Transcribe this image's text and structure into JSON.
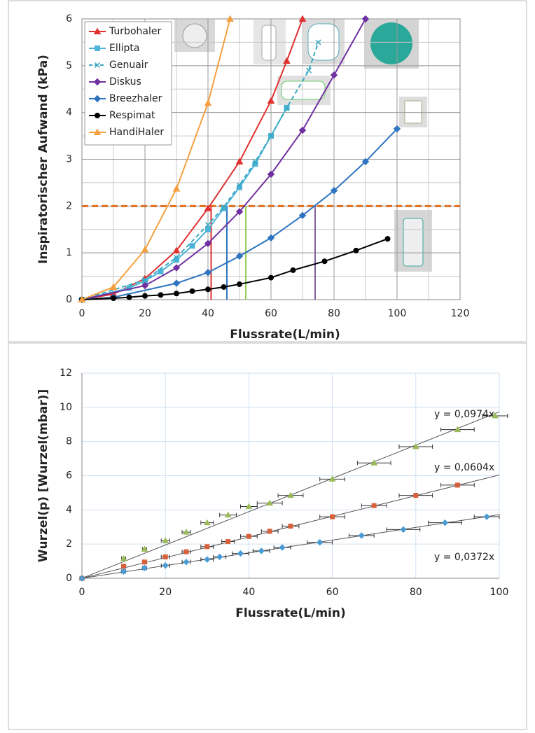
{
  "chart_data": [
    {
      "type": "line",
      "xlabel": "Flussrate(L/min)",
      "ylabel": "Inspiratorischer Aufwand (kPa)",
      "xlim": [
        0,
        120
      ],
      "ylim": [
        0,
        6
      ],
      "xticks": [
        0,
        20,
        40,
        60,
        80,
        100,
        120
      ],
      "yticks": [
        0,
        1,
        2,
        3,
        4,
        5,
        6
      ],
      "grid": true,
      "grid_step": [
        10,
        0.5
      ],
      "legend": "top-left",
      "hline": {
        "y": 2,
        "color": "#e07020"
      },
      "vlines": [
        {
          "x": 41,
          "color": "#e03030"
        },
        {
          "x": 46,
          "color": "#2e74c0"
        },
        {
          "x": 52,
          "color": "#92d050"
        },
        {
          "x": 74,
          "color": "#8060a0"
        }
      ],
      "series": [
        {
          "name": "Turbohaler",
          "color": "#e03030",
          "marker": "triangle",
          "x": [
            0,
            10,
            20,
            30,
            40,
            50,
            60,
            65,
            70
          ],
          "values": [
            0,
            0.12,
            0.45,
            1.05,
            1.95,
            2.95,
            4.25,
            5.1,
            6
          ]
        },
        {
          "name": "Ellipta",
          "color": "#4bb4d8",
          "marker": "square",
          "x": [
            0,
            15,
            20,
            25,
            30,
            35,
            40,
            45,
            50,
            55,
            60,
            65
          ],
          "values": [
            0,
            0.25,
            0.4,
            0.6,
            0.85,
            1.15,
            1.5,
            1.95,
            2.4,
            2.9,
            3.5,
            4.1
          ]
        },
        {
          "name": "Genuair",
          "color": "#3aa8c0",
          "marker": "star",
          "dashed": true,
          "x": [
            0,
            20,
            30,
            40,
            45,
            50,
            55,
            60,
            65,
            72,
            75
          ],
          "values": [
            0,
            0.42,
            0.9,
            1.6,
            1.98,
            2.45,
            2.95,
            3.5,
            4.1,
            4.9,
            5.5
          ]
        },
        {
          "name": "Diskus",
          "color": "#7030a0",
          "marker": "diamond",
          "x": [
            0,
            20,
            30,
            40,
            50,
            60,
            70,
            80,
            90
          ],
          "values": [
            0,
            0.3,
            0.68,
            1.2,
            1.88,
            2.68,
            3.62,
            4.8,
            6
          ]
        },
        {
          "name": "Breezhaler",
          "color": "#2e74c0",
          "marker": "diamond",
          "x": [
            0,
            10,
            30,
            40,
            50,
            60,
            70,
            80,
            90,
            100
          ],
          "values": [
            0,
            0.05,
            0.35,
            0.58,
            0.93,
            1.32,
            1.8,
            2.33,
            2.95,
            3.65
          ]
        },
        {
          "name": "Respimat",
          "color": "#000000",
          "marker": "circle",
          "x": [
            0,
            10,
            15,
            20,
            25,
            30,
            35,
            40,
            45,
            50,
            60,
            67,
            77,
            87,
            97
          ],
          "values": [
            0,
            0.03,
            0.05,
            0.08,
            0.1,
            0.13,
            0.18,
            0.22,
            0.27,
            0.33,
            0.47,
            0.63,
            0.82,
            1.05,
            1.3
          ]
        },
        {
          "name": "HandiHaler",
          "color": "#f5a040",
          "marker": "triangle",
          "x": [
            0,
            10,
            20,
            30,
            40,
            47
          ],
          "values": [
            0,
            0.27,
            1.07,
            2.37,
            4.2,
            6
          ]
        }
      ]
    },
    {
      "type": "scatter",
      "xlabel": "Flussrate(L/min)",
      "ylabel": "Wurzel(p)  [Wurzel(mbar)]",
      "xlim": [
        0,
        100
      ],
      "ylim": [
        0,
        12
      ],
      "xticks": [
        0,
        20,
        40,
        60,
        80,
        100
      ],
      "yticks": [
        0,
        2,
        4,
        6,
        8,
        10,
        12
      ],
      "grid": true,
      "series": [
        {
          "color": "#9bbb59",
          "marker": "triangle",
          "x": [
            0,
            10,
            15,
            20,
            25,
            30,
            35,
            40,
            45,
            50,
            60,
            70,
            80,
            90,
            99
          ],
          "values": [
            0,
            1.15,
            1.7,
            2.2,
            2.7,
            3.25,
            3.7,
            4.2,
            4.4,
            4.85,
            5.8,
            6.75,
            7.7,
            8.7,
            9.5
          ],
          "xerr": [
            0,
            0.5,
            0.5,
            1,
            1,
            1.5,
            2,
            2,
            3,
            3,
            3,
            4,
            4,
            4,
            3
          ],
          "trendline": {
            "slope": 0.0974,
            "label": "y = 0,0974x"
          }
        },
        {
          "color": "#d8603a",
          "marker": "square",
          "x": [
            0,
            10,
            15,
            20,
            25,
            30,
            35,
            40,
            45,
            50,
            60,
            70,
            80,
            90
          ],
          "values": [
            0,
            0.7,
            0.95,
            1.25,
            1.55,
            1.85,
            2.15,
            2.45,
            2.75,
            3.05,
            3.6,
            4.25,
            4.85,
            5.45
          ],
          "xerr": [
            0,
            0.5,
            0.5,
            1,
            1,
            1.5,
            1.5,
            2,
            2,
            2,
            3,
            3,
            4,
            4
          ],
          "trendline": {
            "slope": 0.0604,
            "label": "y = 0,0604x"
          }
        },
        {
          "color": "#4b9cd3",
          "marker": "diamond",
          "x": [
            0,
            10,
            15,
            20,
            25,
            30,
            33,
            38,
            43,
            48,
            57,
            67,
            77,
            87,
            97
          ],
          "values": [
            0,
            0.4,
            0.6,
            0.75,
            0.95,
            1.1,
            1.25,
            1.45,
            1.6,
            1.8,
            2.1,
            2.5,
            2.85,
            3.25,
            3.6
          ],
          "xerr": [
            0,
            0.5,
            0.5,
            1,
            1,
            1.5,
            1.5,
            2,
            2,
            2,
            3,
            3,
            4,
            4,
            3
          ],
          "trendline": {
            "slope": 0.0372,
            "label": "y = 0,0372x"
          }
        }
      ]
    }
  ]
}
